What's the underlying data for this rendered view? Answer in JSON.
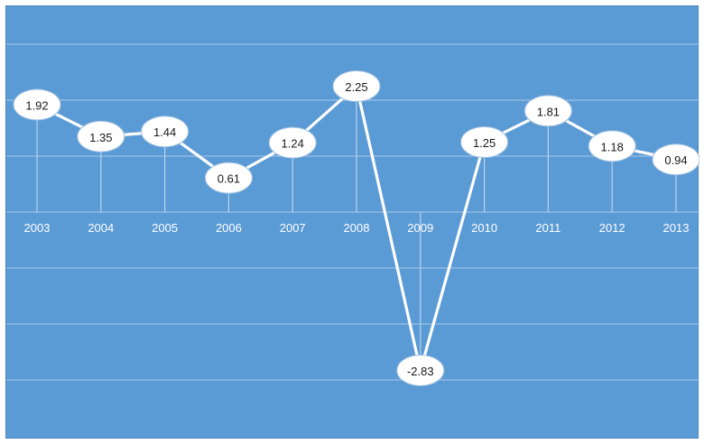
{
  "chart_data": {
    "type": "line",
    "title": "",
    "xlabel": "",
    "ylabel": "",
    "categories": [
      "2003",
      "2004",
      "2005",
      "2006",
      "2007",
      "2008",
      "2009",
      "2010",
      "2011",
      "2012",
      "2013"
    ],
    "series": [
      {
        "values": [
          1.92,
          1.35,
          1.44,
          0.61,
          1.24,
          2.25,
          -2.83,
          1.25,
          1.81,
          1.18,
          0.94
        ]
      }
    ],
    "data_labels": [
      "1.92",
      "1.35",
      "1.44",
      "0.61",
      "1.24",
      "2.25",
      "-2.83",
      "1.25",
      "1.81",
      "1.18",
      "0.94"
    ],
    "ylim": [
      -3,
      3
    ],
    "y_grid_step": 1,
    "grid": true,
    "legend": "none",
    "colors": {
      "background": "#5b9bd5",
      "line": "#ffffff",
      "gridline": "#a9c9ea",
      "label_fill": "#ffffff",
      "tick_text": "#ffffff"
    }
  }
}
